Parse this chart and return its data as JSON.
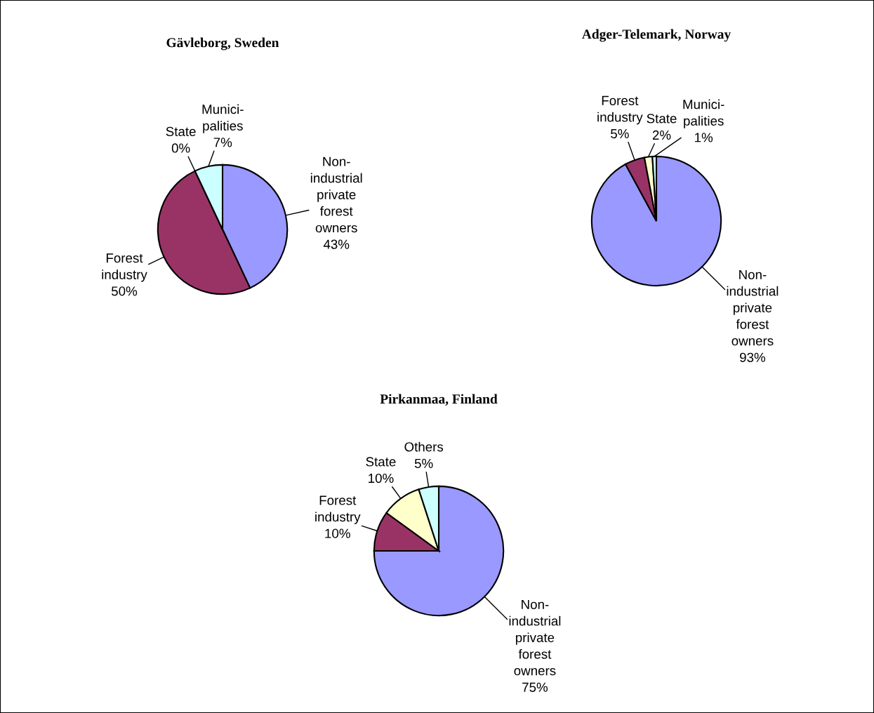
{
  "chart_data": [
    {
      "type": "pie",
      "title": "Gävleborg, Sweden",
      "categories": [
        "Non-\nindustrial\nprivate\nforest\nowners",
        "Forest\nindustry",
        "State",
        "Munici-\npalities"
      ],
      "values": [
        43,
        50,
        0,
        7
      ],
      "value_labels": [
        "43%",
        "50%",
        "0%",
        "7%"
      ],
      "colors": [
        "#9999ff",
        "#993366",
        "#ffffcc",
        "#ccffff"
      ]
    },
    {
      "type": "pie",
      "title": "Adger-Telemark, Norway",
      "categories": [
        "Non-\nindustrial\nprivate\nforest\nowners",
        "Forest\nindustry",
        "State",
        "Munici-\npalities"
      ],
      "values": [
        93,
        5,
        2,
        1
      ],
      "value_labels": [
        "93%",
        "5%",
        "2%",
        "1%"
      ],
      "colors": [
        "#9999ff",
        "#993366",
        "#ffffcc",
        "#ccffff"
      ]
    },
    {
      "type": "pie",
      "title": "Pirkanmaa, Finland",
      "categories": [
        "Non-\nindustrial\nprivate\nforest\nowners",
        "Forest\nindustry",
        "State",
        "Others"
      ],
      "values": [
        75,
        10,
        10,
        5
      ],
      "value_labels": [
        "75%",
        "10%",
        "10%",
        "5%"
      ],
      "colors": [
        "#9999ff",
        "#993366",
        "#ffffcc",
        "#ccffff"
      ]
    }
  ]
}
